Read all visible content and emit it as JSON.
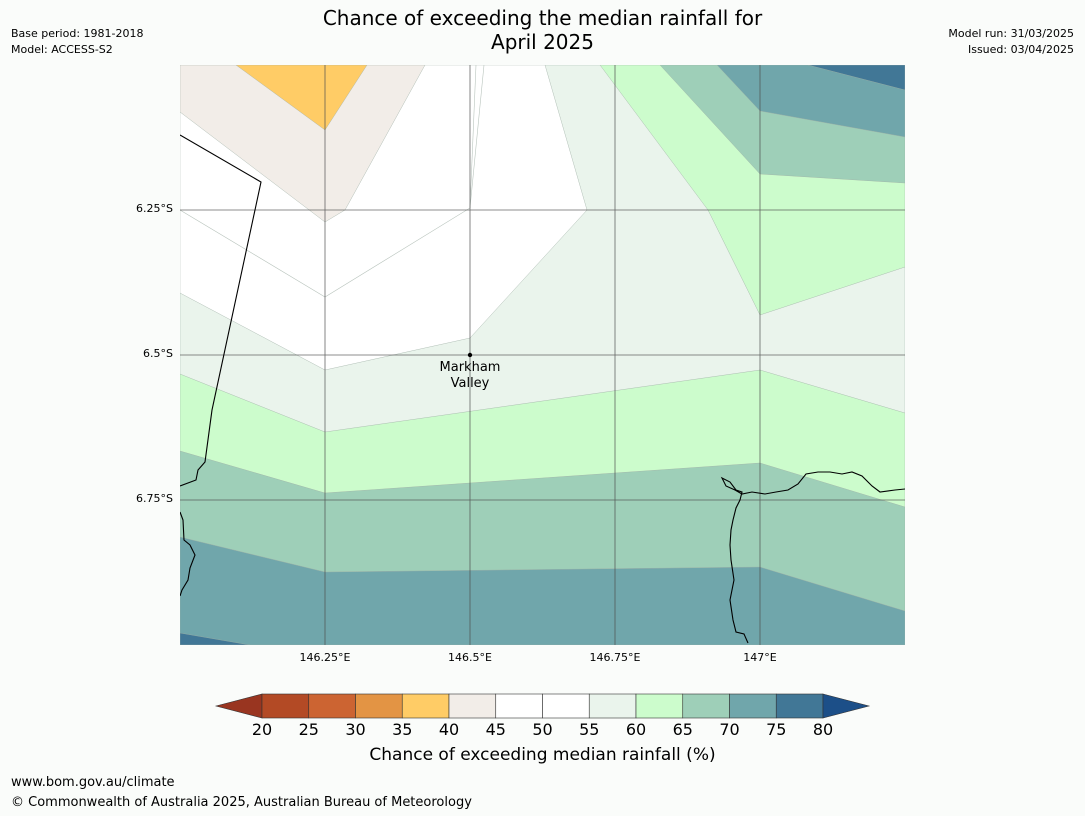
{
  "header": {
    "title_line1": "Chance of exceeding the median rainfall for",
    "title_line2": "April 2025",
    "base_period": "Base period: 1981-2018",
    "model": "Model: ACCESS-S2",
    "model_run": "Model run: 31/03/2025",
    "issued": "Issued: 03/04/2025"
  },
  "map": {
    "lat_labels": [
      "6.25°S",
      "6.5°S",
      "6.75°S"
    ],
    "lon_labels": [
      "146.25°E",
      "146.5°E",
      "146.75°E",
      "147°E"
    ],
    "place": {
      "name_line1": "Markham",
      "name_line2": "Valley"
    }
  },
  "colorbar": {
    "ticks": [
      "20",
      "25",
      "30",
      "35",
      "40",
      "45",
      "50",
      "55",
      "60",
      "65",
      "70",
      "75",
      "80"
    ],
    "colors": {
      "below20": "#993520",
      "20-25": "#b34a25",
      "25-30": "#cc6432",
      "30-35": "#e39444",
      "35-40": "#ffcc66",
      "40-45": "#f2ede8",
      "45-50": "#ffffff",
      "50-55": "#ffffff",
      "55-60": "#eaf4ec",
      "60-65": "#ccfccc",
      "65-70": "#9ecfb8",
      "70-75": "#70a6ab",
      "75-80": "#417796",
      "above80": "#1c4f88"
    },
    "label": "Chance of exceeding median rainfall (%)"
  },
  "footer": {
    "url": "www.bom.gov.au/climate",
    "copyright": "© Commonwealth of Australia 2025, Australian Bureau of Meteorology"
  }
}
